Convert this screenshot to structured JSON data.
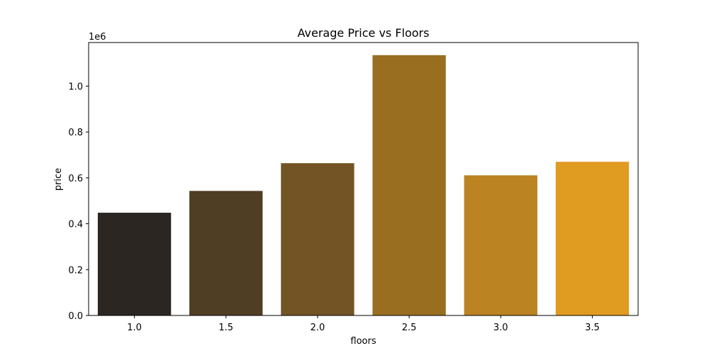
{
  "chart_data": {
    "type": "bar",
    "title": "Average Price vs Floors",
    "xlabel": "floors",
    "ylabel": "price",
    "y_offset_text": "1e6",
    "categories": [
      "1.0",
      "1.5",
      "2.0",
      "2.5",
      "3.0",
      "3.5"
    ],
    "values": [
      448000,
      543000,
      664000,
      1135000,
      611000,
      670000
    ],
    "ylim": [
      0,
      1190000
    ],
    "y_ticks": [
      0,
      200000,
      400000,
      600000,
      800000,
      1000000
    ],
    "y_tick_labels": [
      "0.0",
      "0.2",
      "0.4",
      "0.6",
      "0.8",
      "1.0"
    ],
    "colors": [
      "#2b2621",
      "#4f3e23",
      "#735424",
      "#996e20",
      "#bb8322",
      "#e09b21"
    ],
    "grid": false,
    "legend": "none"
  }
}
